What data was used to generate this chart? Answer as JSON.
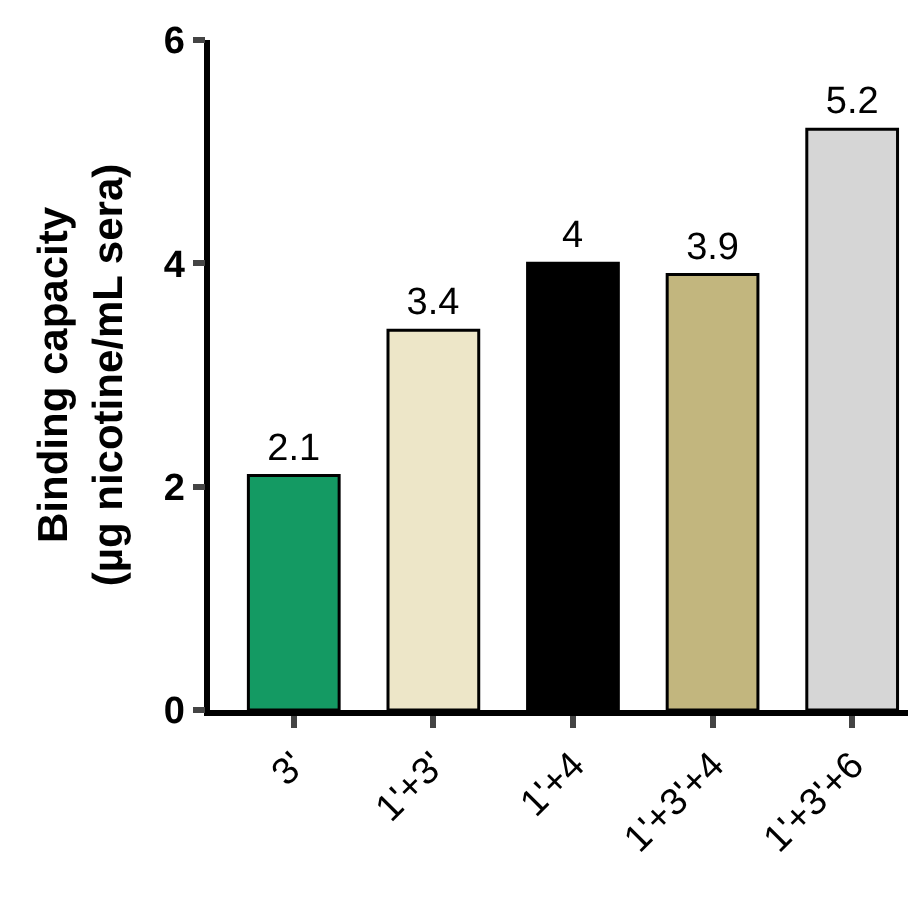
{
  "chart_data": {
    "type": "bar",
    "ylabel": "Binding capacity\n(µg nicotine/mL sera)",
    "categories": [
      "3'",
      "1'+3'",
      "1'+4",
      "1'+3'+4",
      "1'+3'+6"
    ],
    "values": [
      2.1,
      3.4,
      4,
      3.9,
      5.2
    ],
    "colors": [
      "#149a63",
      "#ede6c8",
      "#000000",
      "#c2b67e",
      "#d6d6d6"
    ],
    "ylim": [
      0,
      6
    ],
    "yticks": [
      0,
      2,
      4,
      6
    ],
    "data_labels": true
  }
}
